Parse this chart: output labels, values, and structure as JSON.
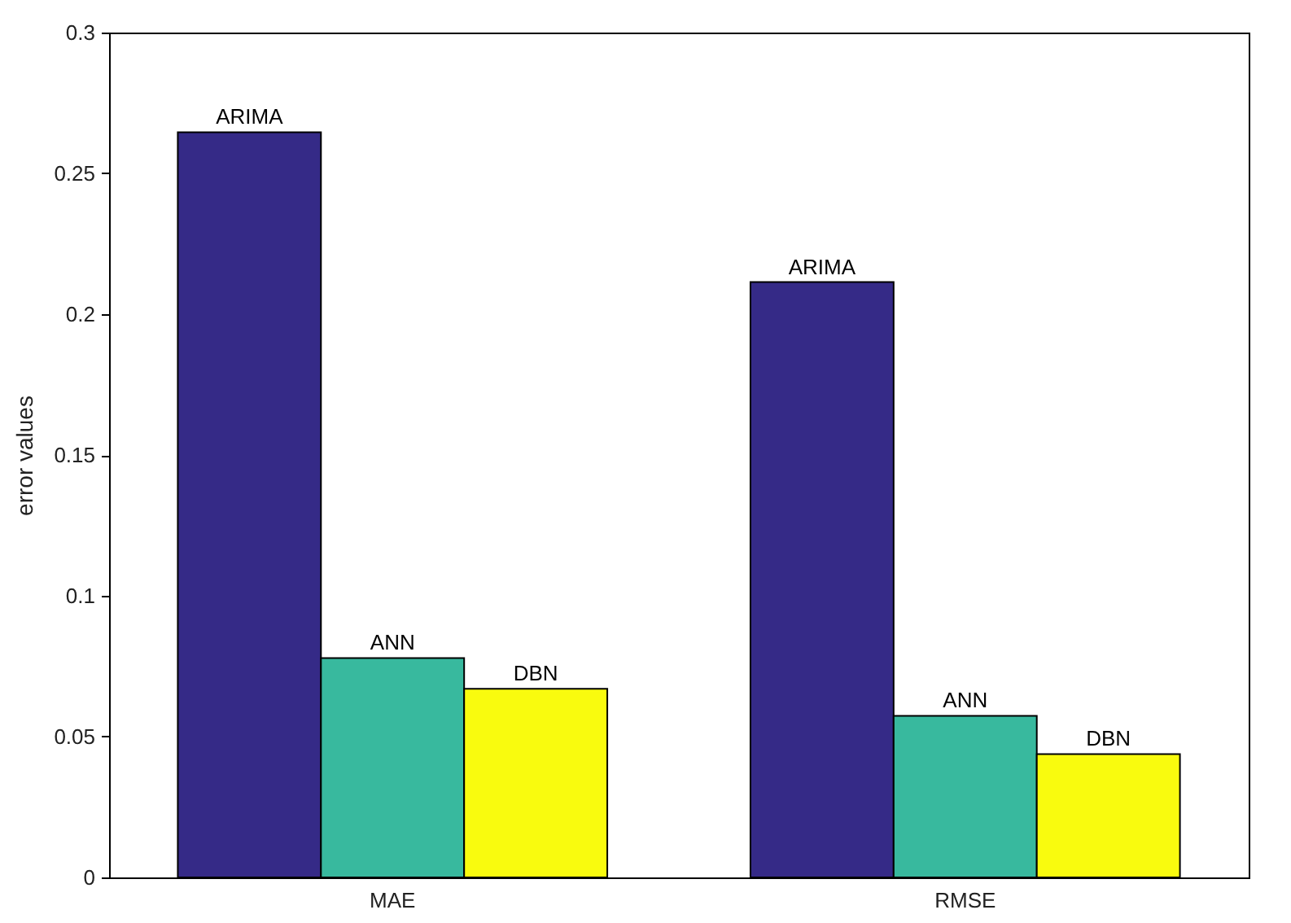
{
  "chart_data": {
    "type": "bar",
    "ylabel": "error values",
    "categories": [
      "MAE",
      "RMSE"
    ],
    "series": [
      {
        "name": "ARIMA",
        "color": "#352a87",
        "values": [
          0.2646,
          0.2114
        ]
      },
      {
        "name": "ANN",
        "color": "#38b99e",
        "values": [
          0.0779,
          0.0574
        ]
      },
      {
        "name": "DBN",
        "color": "#f9fb0e",
        "values": [
          0.067,
          0.0438
        ]
      }
    ],
    "ylim": [
      0,
      0.3
    ],
    "yticks": [
      0,
      0.05,
      0.1,
      0.15,
      0.2,
      0.25,
      0.3
    ]
  }
}
